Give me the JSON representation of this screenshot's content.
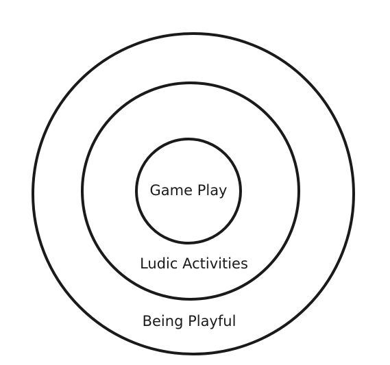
{
  "diagram": {
    "rings": {
      "outer": {
        "label": "Being Playful"
      },
      "middle": {
        "label": "Ludic Activities"
      },
      "inner": {
        "label": "Game Play"
      }
    }
  }
}
